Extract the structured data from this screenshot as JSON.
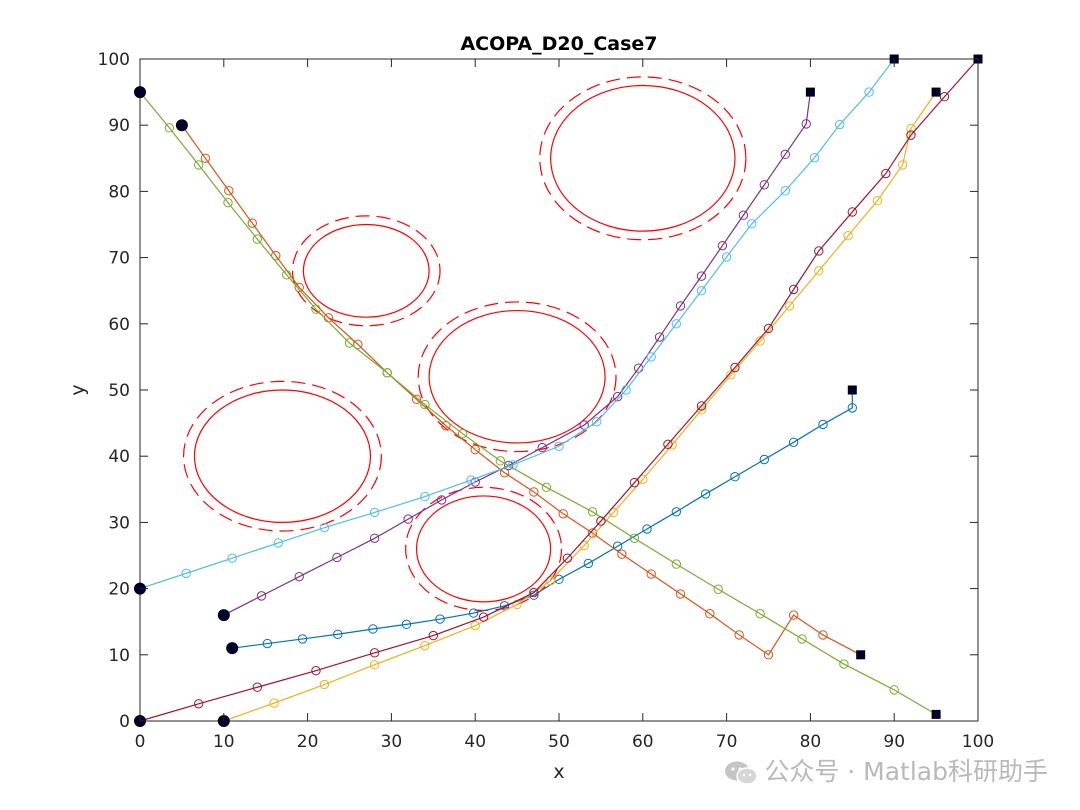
{
  "chart_data": {
    "type": "line",
    "title": "ACOPA_D20_Case7",
    "xlabel": "x",
    "ylabel": "y",
    "xlim": [
      0,
      100
    ],
    "ylim": [
      0,
      100
    ],
    "xticks": [
      0,
      10,
      20,
      30,
      40,
      50,
      60,
      70,
      80,
      90,
      100
    ],
    "yticks": [
      0,
      10,
      20,
      30,
      40,
      50,
      60,
      70,
      80,
      90,
      100
    ],
    "grid": false,
    "obstacles": [
      {
        "cx": 17,
        "cy": 40,
        "rx": 10.5,
        "ry": 10,
        "margin": 1.3
      },
      {
        "cx": 27,
        "cy": 68,
        "rx": 7.5,
        "ry": 7,
        "margin": 1.3
      },
      {
        "cx": 45,
        "cy": 52,
        "rx": 10.5,
        "ry": 10,
        "margin": 1.3
      },
      {
        "cx": 41,
        "cy": 26,
        "rx": 8,
        "ry": 8,
        "margin": 1.3
      },
      {
        "cx": 60,
        "cy": 85,
        "rx": 11,
        "ry": 11,
        "margin": 1.3
      }
    ],
    "series": [
      {
        "color": "#0072BD",
        "start": [
          11,
          11
        ],
        "end": [
          85,
          50
        ],
        "points": [
          [
            11,
            11
          ],
          [
            15.2,
            11.7
          ],
          [
            19.4,
            12.4
          ],
          [
            23.6,
            13.1
          ],
          [
            27.8,
            13.9
          ],
          [
            31.8,
            14.6
          ],
          [
            35.8,
            15.4
          ],
          [
            39.8,
            16.3
          ],
          [
            43.5,
            17.4
          ],
          [
            47,
            19
          ],
          [
            50,
            21.4
          ],
          [
            53.5,
            23.8
          ],
          [
            57,
            26.4
          ],
          [
            60.5,
            29
          ],
          [
            64,
            31.6
          ],
          [
            67.5,
            34.3
          ],
          [
            71,
            36.9
          ],
          [
            74.5,
            39.5
          ],
          [
            78,
            42.1
          ],
          [
            81.5,
            44.8
          ],
          [
            85,
            47.3
          ],
          [
            85,
            50
          ]
        ]
      },
      {
        "color": "#D95319",
        "start": [
          5,
          90
        ],
        "end": [
          86,
          10
        ],
        "points": [
          [
            5,
            90
          ],
          [
            7.8,
            85
          ],
          [
            10.6,
            80.1
          ],
          [
            13.4,
            75.2
          ],
          [
            16.2,
            70.3
          ],
          [
            19,
            65.5
          ],
          [
            22.5,
            60.9
          ],
          [
            26,
            56.9
          ],
          [
            29.5,
            52.6
          ],
          [
            33,
            48.6
          ],
          [
            36.5,
            44.6
          ],
          [
            40,
            41
          ],
          [
            43.5,
            37.5
          ],
          [
            47,
            34.6
          ],
          [
            50.5,
            31.3
          ],
          [
            54,
            28.4
          ],
          [
            57.5,
            25.2
          ],
          [
            61,
            22.2
          ],
          [
            64.5,
            19.2
          ],
          [
            68,
            16.2
          ],
          [
            71.5,
            13
          ],
          [
            75,
            10
          ],
          [
            78,
            16
          ],
          [
            81.5,
            13
          ],
          [
            86,
            10
          ]
        ]
      },
      {
        "color": "#EDB120",
        "start": [
          10,
          0
        ],
        "end": [
          95,
          95
        ],
        "points": [
          [
            10,
            0
          ],
          [
            16,
            2.7
          ],
          [
            22,
            5.5
          ],
          [
            28,
            8.5
          ],
          [
            34,
            11.4
          ],
          [
            40,
            14.4
          ],
          [
            45,
            17.6
          ],
          [
            49,
            21.2
          ],
          [
            53,
            26.5
          ],
          [
            56.5,
            31.5
          ],
          [
            60,
            36.5
          ],
          [
            63.5,
            41.7
          ],
          [
            67,
            47
          ],
          [
            70.5,
            52.3
          ],
          [
            74,
            57.4
          ],
          [
            77.5,
            62.7
          ],
          [
            81,
            68
          ],
          [
            84.5,
            73.3
          ],
          [
            88,
            78.6
          ],
          [
            91,
            84
          ],
          [
            92,
            89.5
          ],
          [
            95,
            95
          ]
        ]
      },
      {
        "color": "#7E2F8E",
        "start": [
          10,
          16
        ],
        "end": [
          80,
          95
        ],
        "points": [
          [
            10,
            16
          ],
          [
            14.5,
            18.9
          ],
          [
            19,
            21.8
          ],
          [
            23.5,
            24.7
          ],
          [
            28,
            27.6
          ],
          [
            32,
            30.5
          ],
          [
            36,
            33.4
          ],
          [
            40,
            36.1
          ],
          [
            44,
            38.6
          ],
          [
            48,
            41.3
          ],
          [
            53,
            44.7
          ],
          [
            57,
            49
          ],
          [
            59.5,
            53.3
          ],
          [
            62,
            58
          ],
          [
            64.5,
            62.7
          ],
          [
            67,
            67.2
          ],
          [
            69.5,
            71.8
          ],
          [
            72,
            76.4
          ],
          [
            74.5,
            81
          ],
          [
            77,
            85.6
          ],
          [
            79.5,
            90.2
          ],
          [
            80,
            95
          ]
        ]
      },
      {
        "color": "#77AC30",
        "start": [
          0,
          95
        ],
        "end": [
          95,
          1
        ],
        "points": [
          [
            0,
            95
          ],
          [
            3.5,
            89.6
          ],
          [
            7,
            84
          ],
          [
            10.5,
            78.3
          ],
          [
            14,
            72.8
          ],
          [
            17.5,
            67.4
          ],
          [
            21,
            62.2
          ],
          [
            25,
            57.1
          ],
          [
            29.5,
            52.6
          ],
          [
            34,
            47.8
          ],
          [
            38.5,
            43.4
          ],
          [
            43,
            39.3
          ],
          [
            48.5,
            35.3
          ],
          [
            54,
            31.6
          ],
          [
            59,
            27.6
          ],
          [
            64,
            23.7
          ],
          [
            69,
            19.9
          ],
          [
            74,
            16.2
          ],
          [
            79,
            12.4
          ],
          [
            84,
            8.6
          ],
          [
            90,
            4.7
          ],
          [
            95,
            1
          ]
        ]
      },
      {
        "color": "#4DBEEE",
        "start": [
          0,
          20
        ],
        "end": [
          90,
          100
        ],
        "points": [
          [
            0,
            20
          ],
          [
            5.5,
            22.3
          ],
          [
            11,
            24.6
          ],
          [
            16.5,
            26.9
          ],
          [
            22,
            29.2
          ],
          [
            28,
            31.5
          ],
          [
            34,
            33.9
          ],
          [
            39.5,
            36.4
          ],
          [
            44.5,
            38.7
          ],
          [
            50,
            41.5
          ],
          [
            54.5,
            45.2
          ],
          [
            58,
            50
          ],
          [
            61,
            55
          ],
          [
            64,
            60
          ],
          [
            67,
            65
          ],
          [
            70,
            70.1
          ],
          [
            73,
            75.1
          ],
          [
            77,
            80.1
          ],
          [
            80.5,
            85.1
          ],
          [
            83.5,
            90.1
          ],
          [
            87,
            95
          ],
          [
            90,
            100
          ]
        ]
      },
      {
        "color": "#A2142F",
        "start": [
          0,
          0
        ],
        "end": [
          100,
          100
        ],
        "points": [
          [
            0,
            0
          ],
          [
            7,
            2.6
          ],
          [
            14,
            5.1
          ],
          [
            21,
            7.6
          ],
          [
            28,
            10.3
          ],
          [
            35,
            12.9
          ],
          [
            41,
            15.7
          ],
          [
            47,
            19.4
          ],
          [
            51,
            24.6
          ],
          [
            55,
            30.2
          ],
          [
            59,
            36
          ],
          [
            63,
            41.8
          ],
          [
            67,
            47.6
          ],
          [
            71,
            53.4
          ],
          [
            75,
            59.3
          ],
          [
            78,
            65.2
          ],
          [
            81,
            71
          ],
          [
            85,
            76.9
          ],
          [
            89,
            82.7
          ],
          [
            92,
            88.5
          ],
          [
            96,
            94.3
          ],
          [
            100,
            100
          ]
        ]
      }
    ]
  },
  "watermark": {
    "icon": "wechat-icon",
    "text": "公众号 · Matlab科研助手"
  }
}
